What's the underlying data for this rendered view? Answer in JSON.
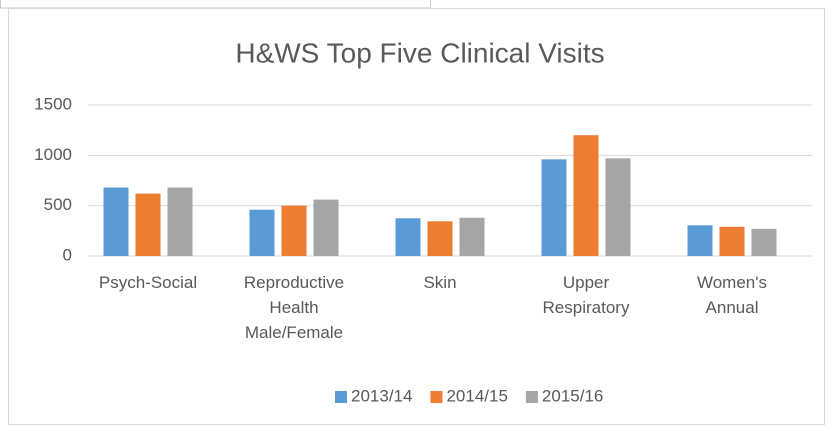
{
  "chart_data": {
    "type": "bar",
    "title": "H&WS Top Five Clinical Visits",
    "categories": [
      "Psych-Social",
      "Reproductive Health Male/Female",
      "Skin",
      "Upper Respiratory",
      "Women's Annual"
    ],
    "series": [
      {
        "name": "2013/14",
        "color": "#5b9bd5",
        "values": [
          680,
          460,
          375,
          960,
          305
        ]
      },
      {
        "name": "2014/15",
        "color": "#ed7d31",
        "values": [
          620,
          500,
          345,
          1200,
          290
        ]
      },
      {
        "name": "2015/16",
        "color": "#a5a5a5",
        "values": [
          680,
          560,
          380,
          970,
          270
        ]
      }
    ],
    "ylim": [
      0,
      1500
    ],
    "yticks": [
      0,
      500,
      1000,
      1500
    ],
    "grid": true,
    "legend": "bottom"
  }
}
